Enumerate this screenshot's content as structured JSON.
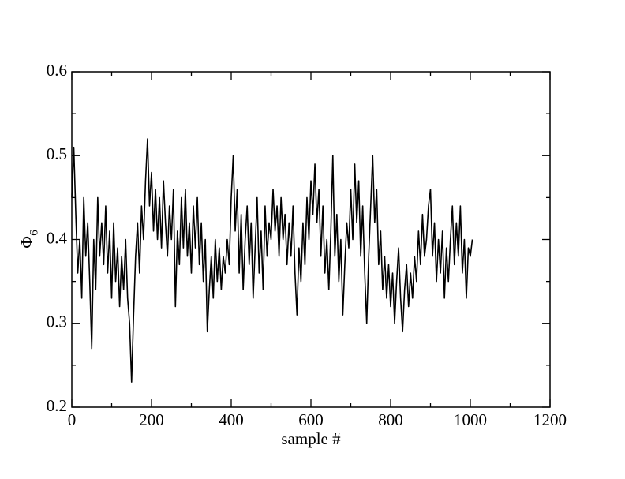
{
  "chart_data": {
    "type": "line",
    "xlabel": "sample #",
    "ylabel": "Φ",
    "ylabel_subscript": "6",
    "xlim": [
      0,
      1200
    ],
    "xticks": [
      0,
      200,
      400,
      600,
      800,
      1000,
      1200
    ],
    "xminor_ticks": [
      100,
      300,
      500,
      700,
      900,
      1100
    ],
    "ylim": [
      0.2,
      0.6
    ],
    "yticks": [
      0.2,
      0.3,
      0.4,
      0.5,
      0.6
    ],
    "yminor_ticks": [
      0.25,
      0.35,
      0.45,
      0.55
    ],
    "color": "#000000",
    "x": [
      0,
      5,
      10,
      15,
      20,
      25,
      30,
      35,
      40,
      45,
      50,
      55,
      60,
      65,
      70,
      75,
      80,
      85,
      90,
      95,
      100,
      105,
      110,
      115,
      120,
      125,
      130,
      135,
      140,
      145,
      150,
      155,
      160,
      165,
      170,
      175,
      180,
      185,
      190,
      195,
      200,
      205,
      210,
      215,
      220,
      225,
      230,
      235,
      240,
      245,
      250,
      255,
      260,
      265,
      270,
      275,
      280,
      285,
      290,
      295,
      300,
      305,
      310,
      315,
      320,
      325,
      330,
      335,
      340,
      345,
      350,
      355,
      360,
      365,
      370,
      375,
      380,
      385,
      390,
      395,
      400,
      405,
      410,
      415,
      420,
      425,
      430,
      435,
      440,
      445,
      450,
      455,
      460,
      465,
      470,
      475,
      480,
      485,
      490,
      495,
      500,
      505,
      510,
      515,
      520,
      525,
      530,
      535,
      540,
      545,
      550,
      555,
      560,
      565,
      570,
      575,
      580,
      585,
      590,
      595,
      600,
      605,
      610,
      615,
      620,
      625,
      630,
      635,
      640,
      645,
      650,
      655,
      660,
      665,
      670,
      675,
      680,
      685,
      690,
      695,
      700,
      705,
      710,
      715,
      720,
      725,
      730,
      735,
      740,
      745,
      750,
      755,
      760,
      765,
      770,
      775,
      780,
      785,
      790,
      795,
      800,
      805,
      810,
      815,
      820,
      825,
      830,
      835,
      840,
      845,
      850,
      855,
      860,
      865,
      870,
      875,
      880,
      885,
      890,
      895,
      900,
      905,
      910,
      915,
      920,
      925,
      930,
      935,
      940,
      945,
      950,
      955,
      960,
      965,
      970,
      975,
      980,
      985,
      990,
      995,
      1000,
      1005
    ],
    "values": [
      0.45,
      0.51,
      0.43,
      0.36,
      0.4,
      0.33,
      0.45,
      0.38,
      0.42,
      0.35,
      0.27,
      0.4,
      0.34,
      0.45,
      0.38,
      0.42,
      0.37,
      0.44,
      0.36,
      0.41,
      0.33,
      0.42,
      0.35,
      0.39,
      0.32,
      0.38,
      0.34,
      0.4,
      0.33,
      0.3,
      0.23,
      0.31,
      0.38,
      0.42,
      0.36,
      0.44,
      0.4,
      0.47,
      0.52,
      0.44,
      0.48,
      0.41,
      0.46,
      0.4,
      0.45,
      0.39,
      0.47,
      0.42,
      0.38,
      0.44,
      0.4,
      0.46,
      0.32,
      0.41,
      0.37,
      0.45,
      0.39,
      0.46,
      0.38,
      0.42,
      0.36,
      0.44,
      0.39,
      0.45,
      0.37,
      0.42,
      0.35,
      0.4,
      0.29,
      0.34,
      0.38,
      0.33,
      0.4,
      0.35,
      0.39,
      0.34,
      0.38,
      0.36,
      0.4,
      0.37,
      0.45,
      0.5,
      0.41,
      0.46,
      0.36,
      0.43,
      0.34,
      0.4,
      0.44,
      0.37,
      0.42,
      0.33,
      0.39,
      0.45,
      0.36,
      0.41,
      0.34,
      0.44,
      0.38,
      0.42,
      0.4,
      0.46,
      0.41,
      0.44,
      0.38,
      0.45,
      0.4,
      0.43,
      0.37,
      0.42,
      0.38,
      0.44,
      0.36,
      0.31,
      0.39,
      0.35,
      0.42,
      0.37,
      0.45,
      0.4,
      0.47,
      0.43,
      0.49,
      0.42,
      0.46,
      0.38,
      0.44,
      0.36,
      0.4,
      0.34,
      0.41,
      0.5,
      0.38,
      0.43,
      0.35,
      0.4,
      0.31,
      0.37,
      0.42,
      0.39,
      0.46,
      0.4,
      0.49,
      0.42,
      0.47,
      0.38,
      0.44,
      0.36,
      0.3,
      0.38,
      0.44,
      0.5,
      0.42,
      0.46,
      0.37,
      0.41,
      0.34,
      0.38,
      0.33,
      0.37,
      0.32,
      0.36,
      0.3,
      0.35,
      0.39,
      0.33,
      0.29,
      0.34,
      0.37,
      0.32,
      0.36,
      0.33,
      0.38,
      0.35,
      0.41,
      0.37,
      0.43,
      0.38,
      0.4,
      0.44,
      0.46,
      0.38,
      0.42,
      0.35,
      0.4,
      0.36,
      0.41,
      0.33,
      0.39,
      0.35,
      0.4,
      0.44,
      0.37,
      0.42,
      0.38,
      0.44,
      0.36,
      0.4,
      0.33,
      0.39,
      0.38,
      0.4
    ]
  }
}
